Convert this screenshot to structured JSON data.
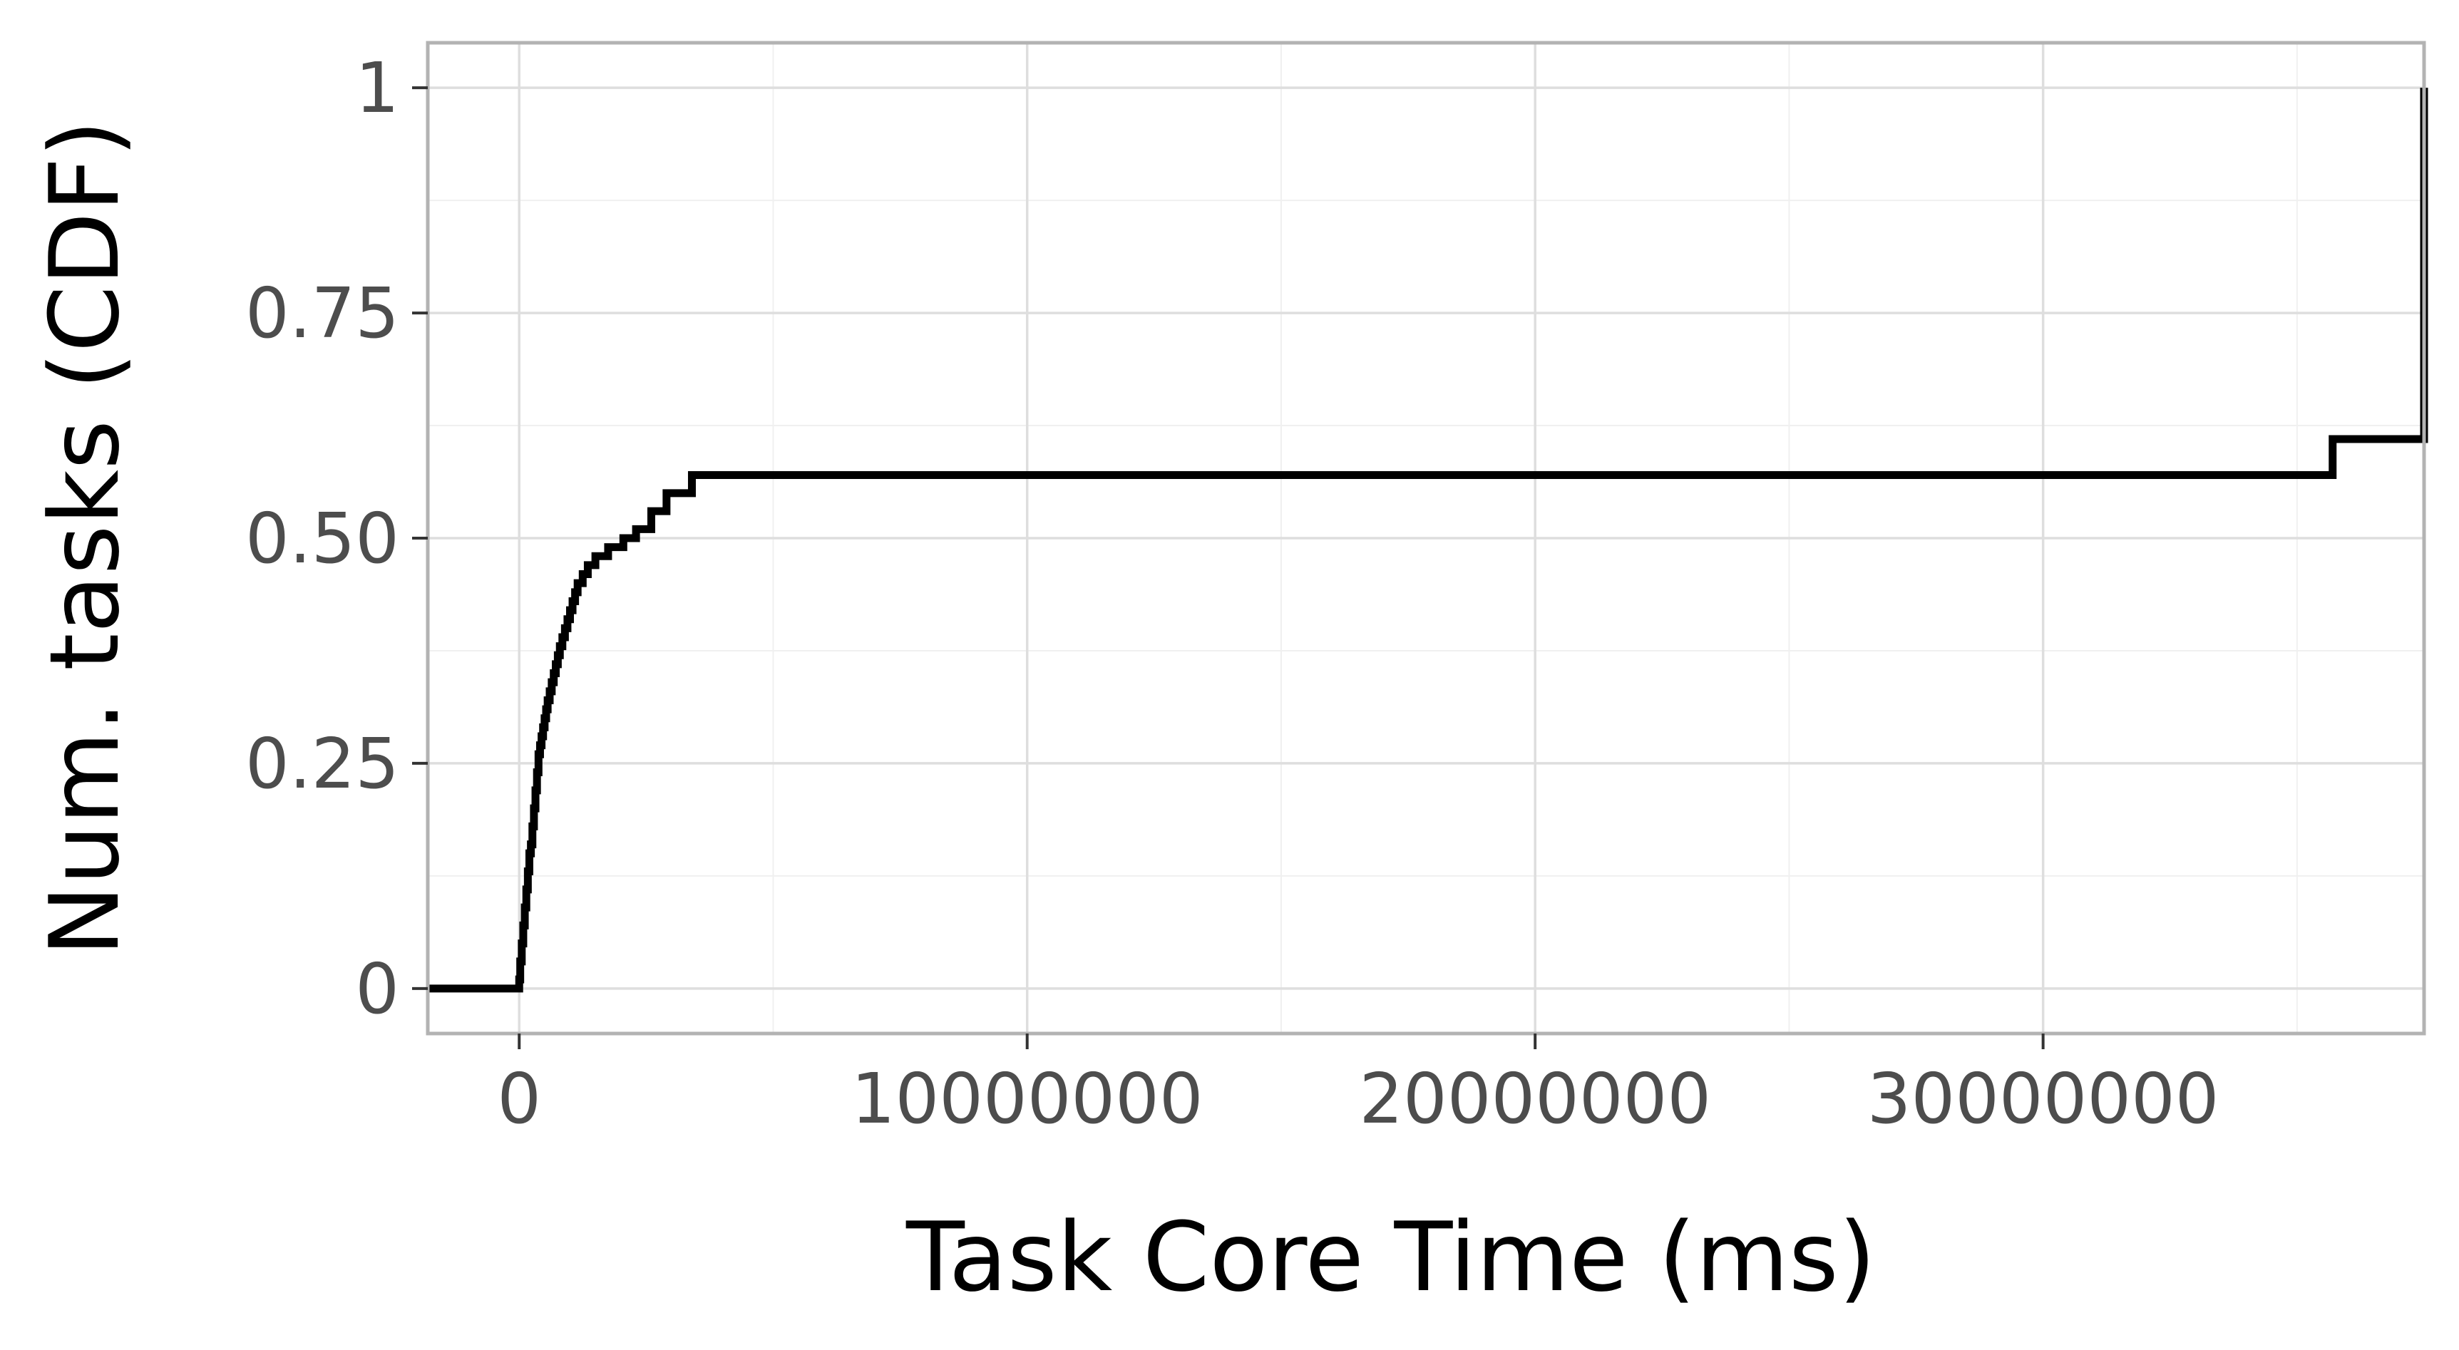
{
  "chart_data": {
    "type": "line",
    "step": true,
    "title": "",
    "xlabel": "Task Core Time (ms)",
    "ylabel": "Num. tasks (CDF)",
    "xlim": [
      -1800000,
      37500000
    ],
    "ylim": [
      -0.05,
      1.05
    ],
    "x_ticks": [
      0,
      10000000,
      20000000,
      30000000
    ],
    "x_tick_labels": [
      "0",
      "10000000",
      "20000000",
      "30000000"
    ],
    "x_minor_ticks": [
      5000000,
      15000000,
      25000000,
      35000000
    ],
    "y_ticks": [
      0,
      0.25,
      0.5,
      0.75,
      1
    ],
    "y_tick_labels": [
      "0",
      "0.25",
      "0.50",
      "0.75",
      "1"
    ],
    "y_minor_ticks": [
      0.125,
      0.375,
      0.625,
      0.875
    ],
    "grid": true,
    "legend": "none",
    "series": [
      {
        "color": "#000000",
        "x": [
          -1800000,
          0,
          20000,
          50000,
          80000,
          110000,
          140000,
          170000,
          200000,
          230000,
          260000,
          290000,
          320000,
          350000,
          380000,
          410000,
          440000,
          470000,
          500000,
          530000,
          560000,
          600000,
          640000,
          680000,
          720000,
          760000,
          800000,
          850000,
          900000,
          950000,
          1000000,
          1050000,
          1100000,
          1150000,
          1250000,
          1350000,
          1500000,
          1750000,
          2050000,
          2300000,
          2600000,
          2900000,
          3400000,
          35700000,
          37500000
        ],
        "y": [
          0,
          0.01,
          0.03,
          0.05,
          0.07,
          0.09,
          0.11,
          0.13,
          0.15,
          0.16,
          0.18,
          0.2,
          0.22,
          0.24,
          0.26,
          0.27,
          0.28,
          0.29,
          0.3,
          0.31,
          0.32,
          0.33,
          0.34,
          0.35,
          0.36,
          0.37,
          0.38,
          0.39,
          0.4,
          0.41,
          0.42,
          0.43,
          0.44,
          0.45,
          0.46,
          0.47,
          0.48,
          0.49,
          0.5,
          0.51,
          0.53,
          0.55,
          0.57,
          0.61,
          1.0
        ]
      }
    ]
  }
}
